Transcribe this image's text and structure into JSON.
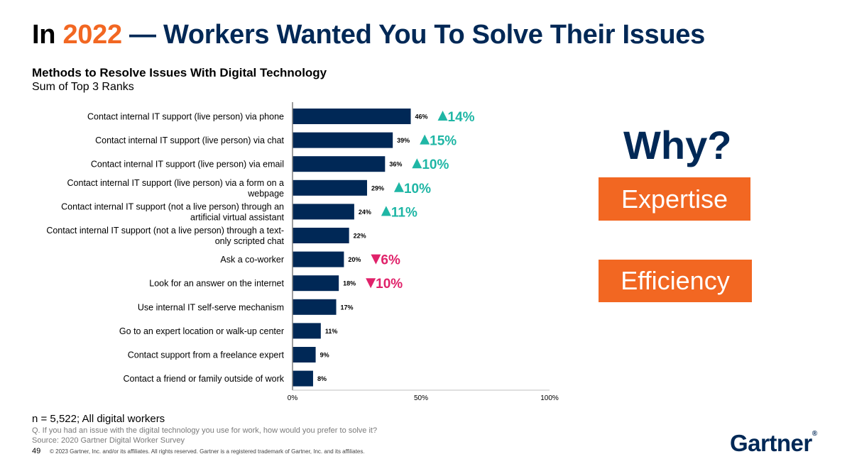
{
  "title": {
    "part1": "In ",
    "part2": "2022",
    "part3": " — Workers Wanted You To Solve Their Issues"
  },
  "chart_subtitle": "Methods to Resolve Issues With Digital Technology",
  "chart_subtitle2": "Sum of Top 3 Ranks",
  "chart_data": {
    "type": "bar",
    "orientation": "horizontal",
    "categories": [
      "Contact internal IT support (live person) via phone",
      "Contact internal IT support (live person) via chat",
      "Contact internal IT support (live person) via email",
      "Contact internal IT support (live person) via a form on a webpage",
      "Contact internal IT support (not a live person) through an artificial virtual assistant",
      "Contact internal IT support (not a live person) through a text-only scripted chat",
      "Ask a co-worker",
      "Look for an answer on the internet",
      "Use internal IT self-serve mechanism",
      "Go to an expert location or walk-up center",
      "Contact support from a freelance expert",
      "Contact a friend or family outside of work"
    ],
    "label_lines": [
      [
        "Contact internal IT support (live person) via phone"
      ],
      [
        "Contact internal IT support (live person) via chat"
      ],
      [
        "Contact internal IT support (live person) via email"
      ],
      [
        "Contact internal IT support (live person) via a form on a",
        "webpage"
      ],
      [
        "Contact internal IT support (not a live person) through an",
        "artificial virtual assistant"
      ],
      [
        "Contact internal IT support (not a live person) through a text-",
        "only scripted chat"
      ],
      [
        "Ask a co-worker"
      ],
      [
        "Look for an answer on the internet"
      ],
      [
        "Use internal IT self-serve mechanism"
      ],
      [
        "Go to an expert location or walk-up center"
      ],
      [
        "Contact support from a freelance expert"
      ],
      [
        "Contact a friend or family outside of work"
      ]
    ],
    "values": [
      46,
      39,
      36,
      29,
      24,
      22,
      20,
      18,
      17,
      11,
      9,
      8
    ],
    "value_labels": [
      "46%",
      "39%",
      "36%",
      "29%",
      "24%",
      "22%",
      "20%",
      "18%",
      "17%",
      "11%",
      "9%",
      "8%"
    ],
    "changes": [
      {
        "index": 0,
        "direction": "up",
        "label": "14%"
      },
      {
        "index": 1,
        "direction": "up",
        "label": "15%"
      },
      {
        "index": 2,
        "direction": "up",
        "label": "10%"
      },
      {
        "index": 3,
        "direction": "up",
        "label": "10%"
      },
      {
        "index": 4,
        "direction": "up",
        "label": "11%"
      },
      {
        "index": 6,
        "direction": "down",
        "label": "6%"
      },
      {
        "index": 7,
        "direction": "down",
        "label": "10%"
      }
    ],
    "xlim": [
      0,
      100
    ],
    "x_ticks": [
      0,
      50,
      100
    ],
    "x_tick_labels": [
      "0%",
      "50%",
      "100%"
    ],
    "bar_color": "#002856",
    "up_color": "#1fb6a5",
    "down_color": "#e0226a",
    "grid": false
  },
  "why_text": "Why?",
  "box1_text": "Expertise",
  "box2_text": "Efficiency",
  "sample_note": "n = 5,522; All digital workers",
  "question": "Q. If you had an issue with the digital technology you use for work, how would you prefer to solve it?",
  "source": "Source: 2020 Gartner Digital Worker Survey",
  "page_number": "49",
  "copyright": "© 2023 Gartner, Inc. and/or its affiliates. All rights reserved. Gartner is a registered trademark of Gartner, Inc. and its affiliates.",
  "logo_text": "Gartner",
  "logo_mark": "®",
  "colors": {
    "navy": "#002856",
    "orange": "#f26722"
  }
}
